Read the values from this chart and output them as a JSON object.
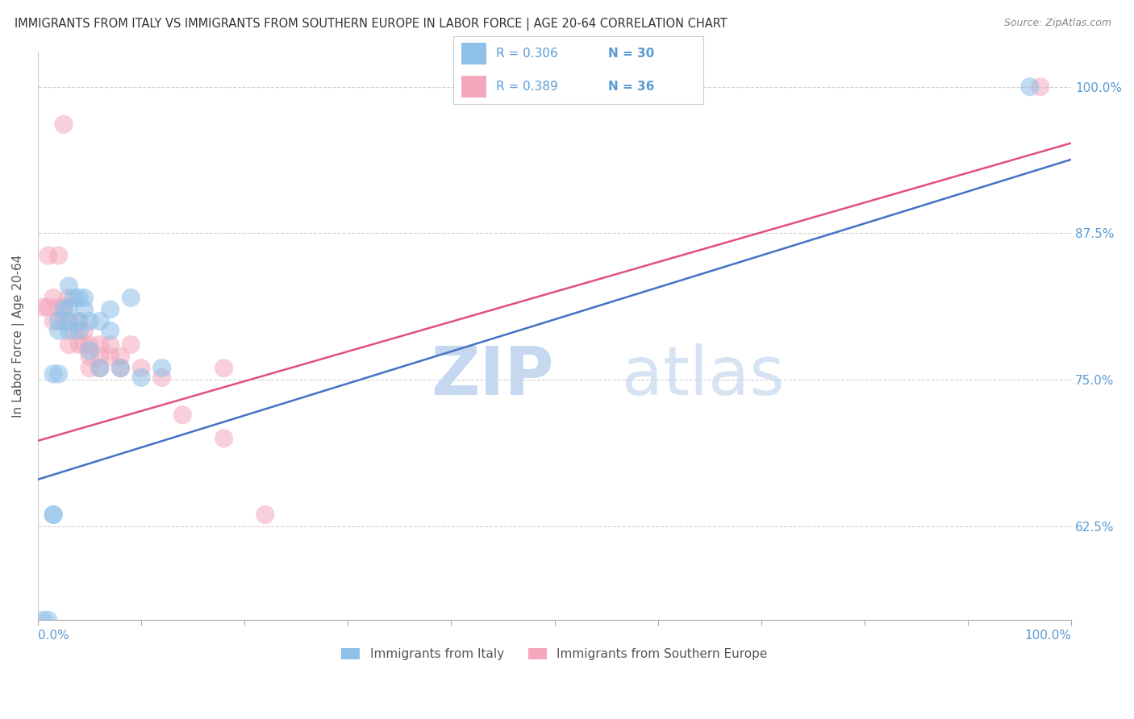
{
  "title": "IMMIGRANTS FROM ITALY VS IMMIGRANTS FROM SOUTHERN EUROPE IN LABOR FORCE | AGE 20-64 CORRELATION CHART",
  "source": "Source: ZipAtlas.com",
  "ylabel": "In Labor Force | Age 20-64",
  "ytick_labels": [
    "62.5%",
    "75.0%",
    "87.5%",
    "100.0%"
  ],
  "ytick_values": [
    0.625,
    0.75,
    0.875,
    1.0
  ],
  "R_italy": 0.306,
  "N_italy": 30,
  "R_south": 0.389,
  "N_south": 36,
  "color_italy": "#8ec0e8",
  "color_south": "#f4a8bc",
  "color_italy_line": "#4472c4",
  "color_south_line": "#e05080",
  "color_axis_labels": "#5b9bd5",
  "watermark_zip_color": "#c5d8ef",
  "watermark_atlas_color": "#c5d8ef",
  "italy_x": [
    0.005,
    0.01,
    0.015,
    0.015,
    0.02,
    0.02,
    0.025,
    0.03,
    0.03,
    0.03,
    0.035,
    0.04,
    0.04,
    0.04,
    0.045,
    0.045,
    0.05,
    0.05,
    0.06,
    0.06,
    0.07,
    0.07,
    0.08,
    0.09,
    0.1,
    0.12,
    0.015,
    0.02,
    0.03,
    0.96
  ],
  "italy_y": [
    0.545,
    0.545,
    0.635,
    0.635,
    0.792,
    0.8,
    0.81,
    0.812,
    0.8,
    0.792,
    0.82,
    0.82,
    0.8,
    0.792,
    0.81,
    0.82,
    0.8,
    0.775,
    0.8,
    0.76,
    0.81,
    0.792,
    0.76,
    0.82,
    0.752,
    0.76,
    0.755,
    0.755,
    0.83,
    1.0
  ],
  "south_x": [
    0.005,
    0.01,
    0.01,
    0.015,
    0.015,
    0.02,
    0.02,
    0.025,
    0.025,
    0.03,
    0.03,
    0.03,
    0.035,
    0.04,
    0.04,
    0.045,
    0.045,
    0.05,
    0.05,
    0.05,
    0.06,
    0.06,
    0.06,
    0.07,
    0.07,
    0.08,
    0.08,
    0.09,
    0.1,
    0.12,
    0.14,
    0.18,
    0.025,
    0.18,
    0.97,
    0.22
  ],
  "south_y": [
    0.812,
    0.812,
    0.856,
    0.82,
    0.8,
    0.812,
    0.856,
    0.812,
    0.8,
    0.82,
    0.8,
    0.78,
    0.792,
    0.8,
    0.78,
    0.792,
    0.78,
    0.78,
    0.77,
    0.76,
    0.78,
    0.77,
    0.76,
    0.78,
    0.77,
    0.77,
    0.76,
    0.78,
    0.76,
    0.752,
    0.72,
    0.7,
    0.968,
    0.76,
    1.0,
    0.635
  ],
  "line_italy_y0": 0.665,
  "line_italy_y1": 0.938,
  "line_south_y0": 0.698,
  "line_south_y1": 0.952,
  "xlim": [
    0.0,
    1.0
  ],
  "ylim": [
    0.545,
    1.03
  ],
  "grid_color": "#cccccc",
  "background_color": "#ffffff"
}
